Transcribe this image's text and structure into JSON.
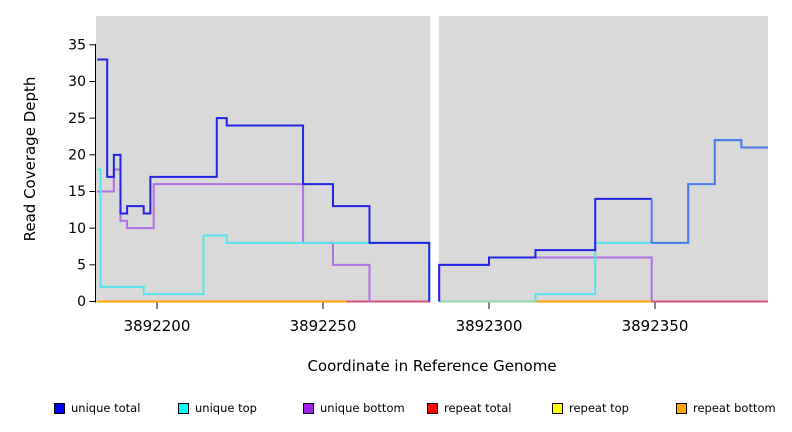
{
  "figure": {
    "x_axis_title": "Coordinate in Reference Genome",
    "y_axis_title": "Read Coverage Depth"
  },
  "legend": {
    "items": [
      {
        "label": "unique total",
        "color": "#0000FF"
      },
      {
        "label": "unique top",
        "color": "#00FFFF"
      },
      {
        "label": "unique bottom",
        "color": "#A020F0"
      },
      {
        "label": "repeat total",
        "color": "#FF0000"
      },
      {
        "label": "repeat top",
        "color": "#FFFF00"
      },
      {
        "label": "repeat bottom",
        "color": "#FFA500"
      }
    ]
  },
  "chart_data": {
    "type": "line",
    "subtype": "step-coverage",
    "title": "",
    "xlabel": "Coordinate in Reference Genome",
    "ylabel": "Read Coverage Depth",
    "xlim": [
      3892182,
      3892384
    ],
    "ylim": [
      0,
      38.9
    ],
    "grid": false,
    "legend_position": "bottom",
    "panel_bg": "#D9D9D9",
    "x_ticks": [
      3892200,
      3892250,
      3892300,
      3892350
    ],
    "x_tick_labels": [
      "3892200",
      "3892250",
      "3892300",
      "3892350"
    ],
    "y_ticks": [
      0,
      5,
      10,
      15,
      20,
      25,
      30,
      35
    ],
    "y_tick_labels": [
      "0",
      "5",
      "10",
      "15",
      "20",
      "25",
      "30",
      "35"
    ],
    "gap": {
      "from": 3892282.3,
      "to": 3892284.9
    },
    "series": [
      {
        "name": "repeat total",
        "legend_color": "#FF0000",
        "draw_color": "#EE2222",
        "segments": [
          {
            "steps": [
              [
                3892182,
                0
              ]
            ],
            "end": 3892282.3
          },
          {
            "steps": [
              [
                3892285,
                0
              ]
            ],
            "end": 3892384
          }
        ]
      },
      {
        "name": "repeat top",
        "legend_color": "#FFFF00",
        "draw_color": "#F2E330",
        "segments": [
          {
            "steps": [
              [
                3892182,
                0
              ]
            ],
            "end": 3892282.3
          },
          {
            "steps": [
              [
                3892285,
                0
              ]
            ],
            "end": 3892384
          }
        ]
      },
      {
        "name": "repeat bottom",
        "legend_color": "#FFA500",
        "draw_color": "#FFA500",
        "segments": [
          {
            "steps": [
              [
                3892182,
                0
              ]
            ],
            "end": 3892282.3
          },
          {
            "steps": [
              [
                3892285,
                0
              ]
            ],
            "end": 3892384
          }
        ]
      },
      {
        "name": "unique bottom",
        "legend_color": "#A020F0",
        "draw_color": "#B06FE2",
        "segments": [
          {
            "steps": [
              [
                3892182,
                15
              ],
              [
                3892187,
                18
              ],
              [
                3892189,
                11
              ],
              [
                3892191,
                10
              ],
              [
                3892199,
                16
              ],
              [
                3892244,
                8
              ],
              [
                3892253,
                5
              ]
            ],
            "end": 3892264,
            "drop_to_zero_at_end": true
          },
          {
            "steps": [
              [
                3892285,
                5
              ],
              [
                3892300,
                6
              ]
            ],
            "start_at_zero": true,
            "end": 3892349,
            "drop_to_zero_at_end": true
          }
        ]
      },
      {
        "name": "unique top",
        "legend_color": "#00FFFF",
        "draw_color": "#55E2EC",
        "segments": [
          {
            "steps": [
              [
                3892182,
                18
              ],
              [
                3892183,
                2
              ],
              [
                3892196,
                1
              ],
              [
                3892214,
                9
              ],
              [
                3892221,
                8
              ]
            ],
            "end": 3892282,
            "drop_to_zero_at_end": true
          },
          {
            "steps": [
              [
                3892314,
                1
              ],
              [
                3892332,
                8
              ],
              [
                3892360,
                16
              ],
              [
                3892368,
                22
              ],
              [
                3892376,
                21
              ]
            ],
            "start_at_zero": true,
            "end": 3892384
          }
        ]
      },
      {
        "name": "unique total",
        "legend_color": "#0000FF",
        "draw_color": "#2323E6",
        "segments": [
          {
            "steps": [
              [
                3892182,
                33
              ],
              [
                3892185,
                17
              ],
              [
                3892187,
                20
              ],
              [
                3892189,
                12
              ],
              [
                3892191,
                13
              ],
              [
                3892196,
                12
              ],
              [
                3892198,
                17
              ],
              [
                3892218,
                25
              ],
              [
                3892221,
                24
              ],
              [
                3892244,
                16
              ],
              [
                3892253,
                13
              ],
              [
                3892264,
                8
              ]
            ],
            "end": 3892282,
            "drop_to_zero_at_end": true
          },
          {
            "steps": [
              [
                3892285,
                5
              ],
              [
                3892300,
                6
              ],
              [
                3892314,
                7
              ],
              [
                3892332,
                14
              ]
            ],
            "start_at_zero": true,
            "end": 3892349
          },
          {
            "steps": [
              [
                3892349,
                8
              ],
              [
                3892360,
                16
              ],
              [
                3892368,
                22
              ],
              [
                3892376,
                21
              ]
            ],
            "enter_from": 14,
            "end": 3892384,
            "color": "#4E79EA"
          }
        ]
      }
    ],
    "zero_line_visible_segments": [
      {
        "from": 3892182,
        "to": 3892257,
        "color": "#FFA500"
      },
      {
        "from": 3892257,
        "to": 3892282.3,
        "color": "#D25580"
      },
      {
        "from": 3892285,
        "to": 3892314,
        "color": "#8FD8A8"
      },
      {
        "from": 3892314,
        "to": 3892349,
        "color": "#FFA500"
      },
      {
        "from": 3892349,
        "to": 3892384,
        "color": "#D25580"
      }
    ]
  }
}
